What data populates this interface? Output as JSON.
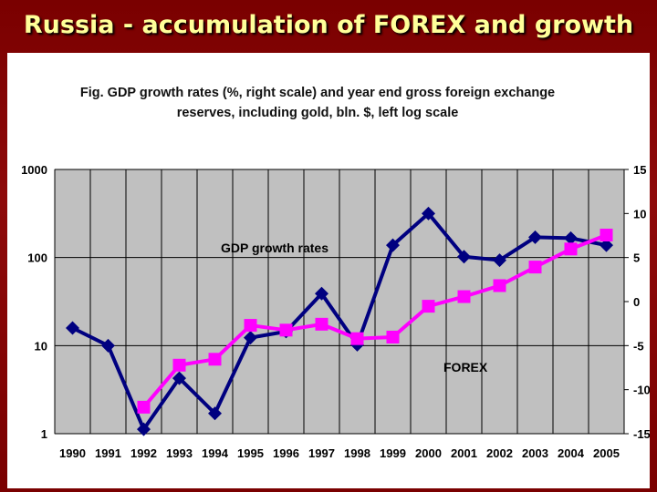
{
  "slide": {
    "title": "Russia - accumulation of FOREX and growth"
  },
  "chart_data": {
    "type": "line",
    "title": "Fig. GDP growth rates (%, right scale) and year end gross foreign exchange reserves, including gold, bln. $, left log scale",
    "title_lines": [
      "Fig. GDP growth rates (%, right scale) and year end gross foreign exchange",
      "reserves, including gold, bln. $, left log scale"
    ],
    "categories": [
      "1990",
      "1991",
      "1992",
      "1993",
      "1994",
      "1995",
      "1996",
      "1997",
      "1998",
      "1999",
      "2000",
      "2001",
      "2002",
      "2003",
      "2004",
      "2005"
    ],
    "y_left": {
      "scale": "log",
      "range": [
        1,
        1000
      ],
      "ticks": [
        "1000",
        "100",
        "10",
        "1"
      ],
      "tick_values": [
        1000,
        100,
        10,
        1
      ]
    },
    "y_right": {
      "scale": "linear",
      "range": [
        -15,
        15
      ],
      "ticks": [
        "15",
        "10",
        "5",
        "0",
        "-5",
        "-10",
        "-15"
      ],
      "tick_values": [
        15,
        10,
        5,
        0,
        -5,
        -10,
        -15
      ]
    },
    "grid": true,
    "series": [
      {
        "name": "GDP growth rates",
        "axis": "right",
        "color": "#000080",
        "marker": "diamond",
        "values": [
          -3.0,
          -5.0,
          -14.5,
          -8.7,
          -12.7,
          -4.1,
          -3.4,
          0.9,
          -4.9,
          6.4,
          10.0,
          5.1,
          4.7,
          7.3,
          7.2,
          6.4
        ]
      },
      {
        "name": "FOREX",
        "axis": "left",
        "color": "#ff00ff",
        "marker": "square",
        "values": [
          null,
          null,
          2,
          6,
          7,
          17,
          15,
          17.5,
          12,
          12.5,
          28,
          36,
          48,
          78,
          125,
          180
        ]
      }
    ],
    "colors": {
      "plot_bg": "#c0c0c0",
      "grid": "#000000"
    }
  }
}
